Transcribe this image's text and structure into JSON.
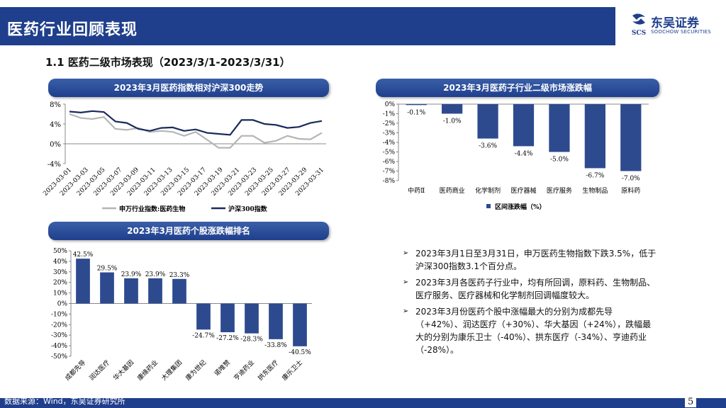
{
  "header": {
    "title": "医药行业回顾表现"
  },
  "logo": {
    "cn": "东吴证券",
    "en": "SOOCHOW SECURITIES",
    "mark_text": "SCS"
  },
  "subtitle": "1.1 医药二级市场表现（2023/3/1-2023/3/31）",
  "footer": {
    "source": "数据来源：Wind，东吴证券研究所",
    "page": "5"
  },
  "colors": {
    "brand": "#1f3f8c",
    "bar": "#2e4a8f",
    "line_grey": "#b5b5b5",
    "line_dark": "#1a2a5c"
  },
  "bullets": [
    "2023年3月1日至3月31日，申万医药生物指数下跌3.5%，低于沪深300指数3.1个百分点。",
    "2023年3月各医药子行业中，均有所回调，原料药、生物制品、医疗服务、医疗器械和化学制剂回调幅度较大。",
    "2023年3月份医药个股中涨幅最大的分别为成都先导（+42%）、润达医疗（+30%）、华大基因（+24%），跌幅最大的分别为康乐卫士（-40%）、拱东医疗（-34%）、亨迪药业（-28%）。"
  ],
  "chart_data": [
    {
      "type": "line",
      "title": "2023年3月医药指数相对沪深300走势",
      "x": [
        "2023-03-01",
        "2023-03-02",
        "2023-03-03",
        "2023-03-06",
        "2023-03-07",
        "2023-03-08",
        "2023-03-09",
        "2023-03-10",
        "2023-03-13",
        "2023-03-14",
        "2023-03-15",
        "2023-03-16",
        "2023-03-17",
        "2023-03-20",
        "2023-03-21",
        "2023-03-22",
        "2023-03-23",
        "2023-03-24",
        "2023-03-27",
        "2023-03-28",
        "2023-03-29",
        "2023-03-30",
        "2023-03-31"
      ],
      "xticks": [
        "2023-03-01",
        "2023-03-03",
        "2023-03-05",
        "2023-03-07",
        "2023-03-09",
        "2023-03-11",
        "2023-03-13",
        "2023-03-15",
        "2023-03-17",
        "2023-03-19",
        "2023-03-21",
        "2023-03-23",
        "2023-03-25",
        "2023-03-27",
        "2023-03-29",
        "2023-03-31"
      ],
      "ylim": [
        -4,
        8
      ],
      "yticks": [
        "8%",
        "4%",
        "0%",
        "-4%"
      ],
      "series": [
        {
          "name": "申万行业指数:医药生物",
          "values": [
            6.0,
            5.2,
            5.0,
            5.4,
            3.0,
            2.8,
            3.2,
            2.4,
            2.6,
            2.4,
            1.6,
            2.4,
            0.8,
            -0.8,
            -0.8,
            1.6,
            1.6,
            0.2,
            0.6,
            1.6,
            1.0,
            0.9,
            2.2
          ]
        },
        {
          "name": "沪深300指数",
          "values": [
            6.5,
            6.3,
            6.6,
            6.4,
            4.5,
            4.2,
            3.0,
            2.6,
            3.2,
            3.3,
            2.6,
            2.9,
            2.2,
            2.0,
            1.8,
            4.8,
            4.8,
            4.0,
            3.8,
            3.2,
            3.4,
            4.2,
            4.6
          ]
        }
      ]
    },
    {
      "type": "bar",
      "title": "2023年3月医药子行业二级市场涨跌幅",
      "categories": [
        "中药Ⅱ",
        "医药商业",
        "化学制剂",
        "医疗器械",
        "医疗服务",
        "生物制品",
        "原料药"
      ],
      "values": [
        -0.1,
        -1.0,
        -3.6,
        -4.4,
        -5.0,
        -6.7,
        -7.0
      ],
      "labels": [
        "-0.1%",
        "-1.0%",
        "-3.6%",
        "-4.4%",
        "-5.0%",
        "-6.7%",
        "-7.0%"
      ],
      "ylim": [
        -8,
        0
      ],
      "yticks": [
        "0%",
        "-1%",
        "-2%",
        "-3%",
        "-4%",
        "-5%",
        "-6%",
        "-7%",
        "-8%"
      ],
      "legend": "区间涨跌幅（%）"
    },
    {
      "type": "bar",
      "title": "2023年3月医药个股涨跌幅排名",
      "categories": [
        "成都先导",
        "润达医疗",
        "华大基因",
        "康缘药业",
        "大理集团",
        "康为世纪",
        "诺唯赞",
        "亨迪药业",
        "拱东医疗",
        "康乐卫士"
      ],
      "values": [
        42.5,
        29.5,
        23.9,
        23.9,
        23.3,
        -24.7,
        -27.2,
        -28.3,
        -33.8,
        -40.5
      ],
      "labels": [
        "42.5%",
        "29.5%",
        "23.9%",
        "23.9%",
        "23.3%",
        "-24.7%",
        "-27.2%",
        "-28.3%",
        "-33.8%",
        "-40.5%"
      ],
      "ylim": [
        -50,
        50
      ],
      "yticks": [
        "50%",
        "40%",
        "30%",
        "20%",
        "10%",
        "0%",
        "-10%",
        "-20%",
        "-30%",
        "-40%",
        "-50%"
      ]
    }
  ]
}
